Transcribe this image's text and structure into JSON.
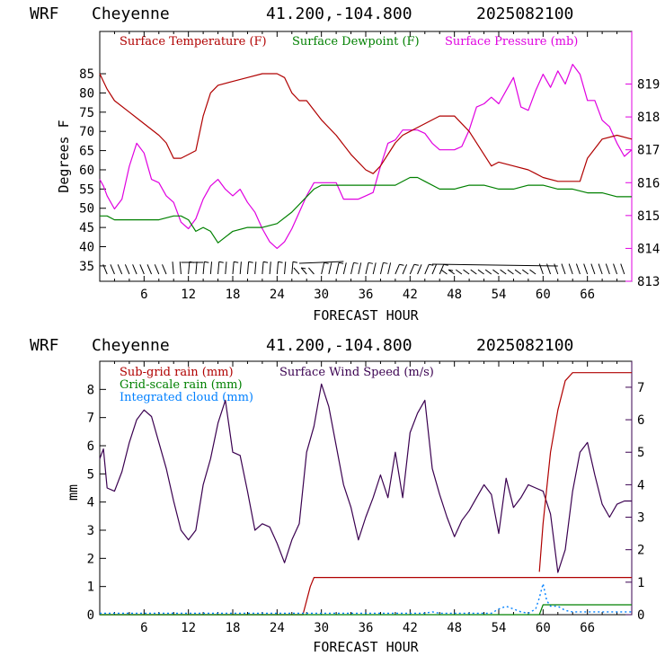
{
  "chart_data": [
    {
      "type": "line",
      "header": {
        "model": "WRF",
        "station": "Cheyenne",
        "coords": "41.200,-104.800",
        "init": "2025082100"
      },
      "xlabel": "FORECAST HOUR",
      "ylabel": "Degrees F",
      "xlim": [
        0,
        72
      ],
      "xticks": [
        "6",
        "12",
        "18",
        "24",
        "30",
        "36",
        "42",
        "48",
        "54",
        "60",
        "66"
      ],
      "ylim_left": [
        31,
        96
      ],
      "yticks_left": [
        "35",
        "40",
        "45",
        "50",
        "55",
        "60",
        "65",
        "70",
        "75",
        "80",
        "85"
      ],
      "ylim_right": [
        813,
        820.6
      ],
      "yticks_right": [
        "813",
        "814",
        "815",
        "816",
        "817",
        "818",
        "819"
      ],
      "colors": {
        "temp": "#b00000",
        "dew": "#008000",
        "pres": "#e000e0",
        "axis_right": "#e000e0"
      },
      "legend": [
        "Surface Temperature (F)",
        "Surface Dewpoint (F)",
        "Surface Pressure (mb)"
      ],
      "wind_barbs_present": true,
      "series": [
        {
          "name": "Surface Temperature (F)",
          "axis": "left",
          "x": [
            0,
            1,
            2,
            4,
            6,
            8,
            9,
            10,
            11,
            12,
            13,
            14,
            15,
            16,
            18,
            20,
            22,
            24,
            25,
            26,
            27,
            28,
            30,
            32,
            34,
            36,
            37,
            38,
            40,
            41,
            42,
            43,
            44,
            46,
            48,
            50,
            52,
            53,
            54,
            56,
            58,
            59,
            60,
            62,
            64,
            65,
            66,
            68,
            70,
            72
          ],
          "y": [
            85,
            81,
            78,
            75,
            72,
            69,
            67,
            63,
            63,
            64,
            65,
            74,
            80,
            82,
            83,
            84,
            85,
            85,
            84,
            80,
            78,
            78,
            73,
            69,
            64,
            60,
            59,
            61,
            67,
            69,
            70,
            71,
            72,
            74,
            74,
            70,
            64,
            61,
            62,
            61,
            60,
            59,
            58,
            57,
            57,
            57,
            63,
            68,
            69,
            68
          ]
        },
        {
          "name": "Surface Dewpoint (F)",
          "axis": "left",
          "x": [
            0,
            1,
            2,
            4,
            6,
            8,
            10,
            11,
            12,
            13,
            14,
            15,
            16,
            18,
            20,
            22,
            24,
            26,
            28,
            29,
            30,
            32,
            34,
            36,
            38,
            40,
            42,
            43,
            44,
            46,
            48,
            50,
            52,
            54,
            56,
            58,
            60,
            62,
            64,
            66,
            68,
            70,
            72
          ],
          "y": [
            48,
            48,
            47,
            47,
            47,
            47,
            48,
            48,
            47,
            44,
            45,
            44,
            41,
            44,
            45,
            45,
            46,
            49,
            53,
            55,
            56,
            56,
            56,
            56,
            56,
            56,
            58,
            58,
            57,
            55,
            55,
            56,
            56,
            55,
            55,
            56,
            56,
            55,
            55,
            54,
            54,
            53,
            53
          ]
        },
        {
          "name": "Surface Pressure (mb)",
          "axis": "right",
          "x": [
            0,
            0.5,
            1,
            2,
            3,
            4,
            5,
            6,
            7,
            8,
            9,
            10,
            11,
            12,
            13,
            14,
            15,
            16,
            17,
            18,
            19,
            20,
            21,
            22,
            23,
            24,
            25,
            26,
            27,
            28,
            29,
            30,
            31,
            32,
            33,
            34,
            35,
            36,
            37,
            38,
            39,
            40,
            41,
            42,
            43,
            44,
            45,
            46,
            47,
            48,
            49,
            50,
            51,
            52,
            53,
            54,
            55,
            56,
            57,
            58,
            59,
            60,
            61,
            62,
            63,
            64,
            65,
            66,
            67,
            68,
            69,
            70,
            71,
            72
          ],
          "y": [
            816.1,
            815.9,
            815.6,
            815.2,
            815.5,
            816.5,
            817.2,
            816.9,
            816.1,
            816.0,
            815.6,
            815.4,
            814.8,
            814.6,
            814.9,
            815.5,
            815.9,
            816.1,
            815.8,
            815.6,
            815.8,
            815.4,
            815.1,
            814.6,
            814.2,
            814.0,
            814.2,
            814.6,
            815.1,
            815.6,
            816.0,
            816.0,
            816.0,
            816.0,
            815.5,
            815.5,
            815.5,
            815.6,
            815.7,
            816.5,
            817.2,
            817.3,
            817.6,
            817.6,
            817.6,
            817.5,
            817.2,
            817.0,
            817.0,
            817.0,
            817.1,
            817.6,
            818.3,
            818.4,
            818.6,
            818.4,
            818.8,
            819.2,
            818.3,
            818.2,
            818.8,
            819.3,
            818.9,
            819.4,
            819.0,
            819.6,
            819.3,
            818.5,
            818.5,
            817.9,
            817.7,
            817.2,
            816.8,
            817.0
          ]
        }
      ]
    },
    {
      "type": "line",
      "header": {
        "model": "WRF",
        "station": "Cheyenne",
        "coords": "41.200,-104.800",
        "init": "2025082100"
      },
      "xlabel": "FORECAST HOUR",
      "ylabel": "mm",
      "xlim": [
        0,
        72
      ],
      "xticks": [
        "6",
        "12",
        "18",
        "24",
        "30",
        "36",
        "42",
        "48",
        "54",
        "60",
        "66"
      ],
      "ylim_left": [
        0,
        9.0
      ],
      "yticks_left": [
        "0",
        "1",
        "2",
        "3",
        "4",
        "5",
        "6",
        "7",
        "8"
      ],
      "ylim_right": [
        0,
        7.8
      ],
      "yticks_right": [
        "0",
        "1",
        "2",
        "3",
        "4",
        "5",
        "6",
        "7"
      ],
      "colors": {
        "subgrid": "#b00000",
        "gridscale": "#008000",
        "cloud": "#0080ff",
        "wind": "#3a0050",
        "axis_right": "#3a0050"
      },
      "legend": [
        "Sub-grid rain (mm)",
        "Surface Wind Speed (m/s)",
        "Grid-scale rain (mm)",
        "Integrated cloud (mm)"
      ],
      "series": [
        {
          "name": "Sub-grid rain (mm)",
          "axis": "left",
          "x": [
            0,
            27.5,
            28,
            28.5,
            29,
            72
          ],
          "y": [
            0,
            0,
            0.5,
            1.0,
            1.32,
            1.32
          ],
          "x2": [
            59.5,
            60,
            61,
            62,
            63,
            64,
            72
          ],
          "y2": [
            1.32,
            2.8,
            5.0,
            6.3,
            7.2,
            7.45,
            7.45
          ]
        },
        {
          "name": "Grid-scale rain (mm)",
          "axis": "left",
          "x": [
            0,
            59.5,
            60,
            72
          ],
          "y": [
            0,
            0,
            0.35,
            0.35
          ]
        },
        {
          "name": "Integrated cloud (mm)",
          "axis": "left",
          "x": [
            0,
            44,
            45,
            46,
            47,
            53,
            54,
            55,
            56,
            57,
            58,
            59,
            59.5,
            60,
            60.5,
            61,
            62,
            63,
            64,
            72
          ],
          "y": [
            0.05,
            0.05,
            0.1,
            0.05,
            0.05,
            0.05,
            0.2,
            0.3,
            0.2,
            0.1,
            0.05,
            0.2,
            0.6,
            1.1,
            0.5,
            0.3,
            0.3,
            0.15,
            0.1,
            0.1
          ]
        },
        {
          "name": "Surface Wind Speed (m/s)",
          "axis": "right",
          "x": [
            0,
            0.5,
            1,
            2,
            3,
            4,
            5,
            6,
            7,
            8,
            9,
            10,
            11,
            12,
            13,
            14,
            15,
            16,
            17,
            18,
            19,
            20,
            21,
            22,
            23,
            24,
            25,
            26,
            27,
            28,
            29,
            30,
            31,
            32,
            33,
            34,
            35,
            36,
            37,
            38,
            39,
            40,
            41,
            42,
            43,
            44,
            45,
            46,
            47,
            48,
            49,
            50,
            51,
            52,
            53,
            54,
            55,
            56,
            57,
            58,
            59,
            60,
            61,
            62,
            63,
            64,
            65,
            66,
            67,
            68,
            69,
            70,
            71,
            72
          ],
          "y": [
            4.8,
            5.1,
            3.9,
            3.8,
            4.4,
            5.3,
            6.0,
            6.3,
            6.1,
            5.3,
            4.5,
            3.5,
            2.6,
            2.3,
            2.6,
            4.0,
            4.8,
            5.9,
            6.6,
            5.0,
            4.9,
            3.8,
            2.6,
            2.8,
            2.7,
            2.2,
            1.6,
            2.3,
            2.8,
            5.0,
            5.8,
            7.1,
            6.4,
            5.2,
            4.0,
            3.3,
            2.3,
            3.0,
            3.6,
            4.3,
            3.6,
            5.0,
            3.6,
            5.6,
            6.2,
            6.6,
            4.5,
            3.7,
            3.0,
            2.4,
            2.9,
            3.2,
            3.6,
            4.0,
            3.7,
            2.5,
            4.2,
            3.3,
            3.6,
            4.0,
            3.9,
            3.8,
            3.1,
            1.3,
            2.0,
            3.8,
            5.0,
            5.3,
            4.3,
            3.4,
            3.0,
            3.4,
            3.5,
            3.5
          ]
        }
      ]
    }
  ]
}
